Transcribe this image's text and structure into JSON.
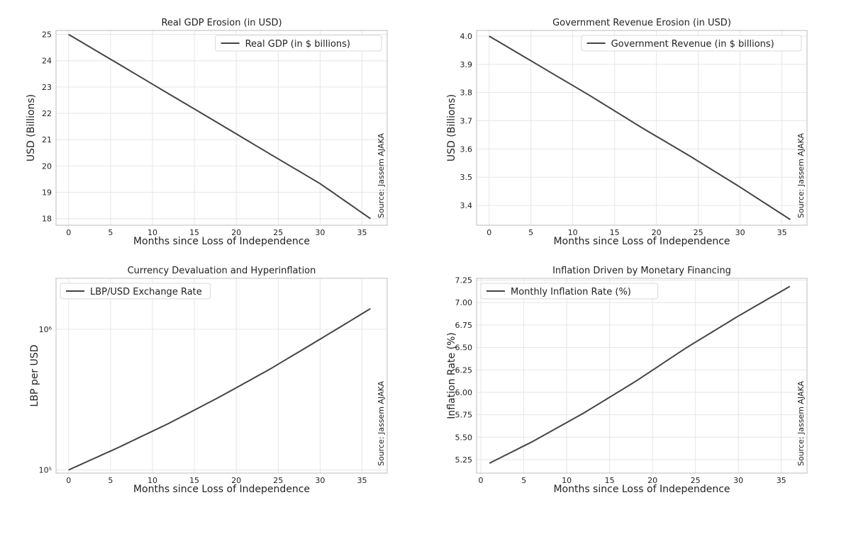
{
  "source_note": "Source: Jassem AJAKA",
  "chart_data": [
    {
      "type": "line",
      "title": "Real GDP Erosion (in USD)",
      "xlabel": "Months since Loss of Independence",
      "ylabel": "USD (Billions)",
      "xlim": [
        -1.5,
        38
      ],
      "ylim": [
        17.75,
        25.15
      ],
      "xticks": [
        0,
        5,
        10,
        15,
        20,
        25,
        30,
        35
      ],
      "yticks": [
        18,
        19,
        20,
        21,
        22,
        23,
        24,
        25
      ],
      "ytick_labels": [
        "18",
        "19",
        "20",
        "21",
        "22",
        "23",
        "24",
        "25"
      ],
      "yscale": "linear",
      "grid": true,
      "legend_position": "top-right",
      "series": [
        {
          "name": "Real GDP (in $ billions)",
          "x": [
            0,
            6,
            12,
            18,
            24,
            30,
            36
          ],
          "y": [
            25.0,
            23.87,
            22.73,
            21.6,
            20.46,
            19.33,
            18.0
          ]
        }
      ]
    },
    {
      "type": "line",
      "title": "Government Revenue Erosion (in USD)",
      "xlabel": "Months since Loss of Independence",
      "ylabel": "USD (Billions)",
      "xlim": [
        -1.5,
        38
      ],
      "ylim": [
        3.33,
        4.02
      ],
      "xticks": [
        0,
        5,
        10,
        15,
        20,
        25,
        30,
        35
      ],
      "yticks": [
        3.4,
        3.5,
        3.6,
        3.7,
        3.8,
        3.9,
        4.0
      ],
      "ytick_labels": [
        "3.4",
        "3.5",
        "3.6",
        "3.7",
        "3.8",
        "3.9",
        "4.0"
      ],
      "yscale": "linear",
      "grid": true,
      "legend_position": "top-right",
      "series": [
        {
          "name": "Government Revenue (in $ billions)",
          "x": [
            0,
            6,
            12,
            18,
            24,
            30,
            36
          ],
          "y": [
            4.0,
            3.895,
            3.79,
            3.68,
            3.575,
            3.465,
            3.35
          ]
        }
      ]
    },
    {
      "type": "line",
      "title": "Currency Devaluation and Hyperinflation",
      "xlabel": "Months since Loss of Independence",
      "ylabel": "LBP per USD",
      "xlim": [
        -1.5,
        38
      ],
      "ylim": [
        95000,
        2300000
      ],
      "xticks": [
        0,
        5,
        10,
        15,
        20,
        25,
        30,
        35
      ],
      "yticks": [
        100000,
        1000000
      ],
      "ytick_labels": [
        "10⁵",
        "10⁶"
      ],
      "yscale": "log",
      "grid": true,
      "legend_position": "top-left",
      "series": [
        {
          "name": "LBP/USD Exchange Rate",
          "x": [
            0,
            6,
            12,
            18,
            24,
            30,
            36
          ],
          "y": [
            100000,
            145000,
            215000,
            330000,
            520000,
            850000,
            1400000
          ]
        }
      ]
    },
    {
      "type": "line",
      "title": "Inflation Driven by Monetary Financing",
      "xlabel": "Months since Loss of Independence",
      "ylabel": "Inflation Rate (%)",
      "xlim": [
        -0.5,
        38
      ],
      "ylim": [
        5.1,
        7.27
      ],
      "xticks": [
        0,
        5,
        10,
        15,
        20,
        25,
        30,
        35
      ],
      "yticks": [
        5.25,
        5.5,
        5.75,
        6.0,
        6.25,
        6.5,
        6.75,
        7.0,
        7.25
      ],
      "ytick_labels": [
        "5.25",
        "5.50",
        "5.75",
        "6.00",
        "6.25",
        "6.50",
        "6.75",
        "7.00",
        "7.25"
      ],
      "yscale": "linear",
      "grid": true,
      "legend_position": "top-left",
      "series": [
        {
          "name": "Monthly Inflation Rate (%)",
          "x": [
            1,
            6,
            12,
            18,
            24,
            30,
            36
          ],
          "y": [
            5.21,
            5.45,
            5.77,
            6.12,
            6.5,
            6.85,
            7.18
          ]
        }
      ]
    }
  ]
}
